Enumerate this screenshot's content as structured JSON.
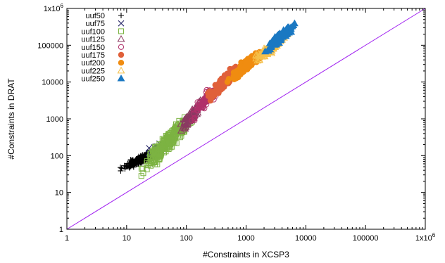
{
  "chart_data": {
    "type": "scatter",
    "xlabel": "#Constraints in XCSP3",
    "ylabel": "#Constraints in DRAT",
    "xscale": "log",
    "yscale": "log",
    "xlim": [
      1,
      1000000
    ],
    "ylim": [
      1,
      1000000
    ],
    "x_ticks": [
      "1",
      "10",
      "100",
      "1000",
      "10000",
      "100000",
      "1x10^6"
    ],
    "y_ticks": [
      "1",
      "10",
      "100",
      "1000",
      "10000",
      "100000",
      "1x10^6"
    ],
    "grid": false,
    "legend_position": "top-left",
    "reference_line": {
      "from": [
        1,
        1
      ],
      "to": [
        1000000,
        1000000
      ],
      "color": "#a020f0"
    },
    "series": [
      {
        "name": "uuf50",
        "marker": "plus",
        "color": "#000000",
        "x_range": [
          6,
          60
        ],
        "y_range": [
          35,
          200
        ]
      },
      {
        "name": "uuf75",
        "marker": "cross",
        "color": "#2b2b6b",
        "x_range": [
          10,
          90
        ],
        "y_range": [
          60,
          400
        ]
      },
      {
        "name": "uuf100",
        "marker": "open-square",
        "color": "#7cb342",
        "x_range": [
          12,
          200
        ],
        "y_range": [
          22,
          2500
        ]
      },
      {
        "name": "uuf125",
        "marker": "open-triangle",
        "color": "#8b3a62",
        "x_range": [
          60,
          250
        ],
        "y_range": [
          300,
          5000
        ]
      },
      {
        "name": "uuf150",
        "marker": "open-circle",
        "color": "#b0306a",
        "x_range": [
          90,
          500
        ],
        "y_range": [
          700,
          15000
        ]
      },
      {
        "name": "uuf175",
        "marker": "filled-circle",
        "color": "#e0603a",
        "x_range": [
          180,
          1000
        ],
        "y_range": [
          2500,
          40000
        ]
      },
      {
        "name": "uuf200",
        "marker": "filled-circle",
        "color": "#f08c10",
        "x_range": [
          400,
          2500
        ],
        "y_range": [
          8000,
          100000
        ]
      },
      {
        "name": "uuf225",
        "marker": "open-triangle",
        "color": "#f5c04a",
        "x_range": [
          1000,
          6000
        ],
        "y_range": [
          25000,
          250000
        ]
      },
      {
        "name": "uuf250",
        "marker": "filled-triangle",
        "color": "#1a78c2",
        "x_range": [
          1500,
          9000
        ],
        "y_range": [
          50000,
          550000
        ]
      }
    ]
  }
}
